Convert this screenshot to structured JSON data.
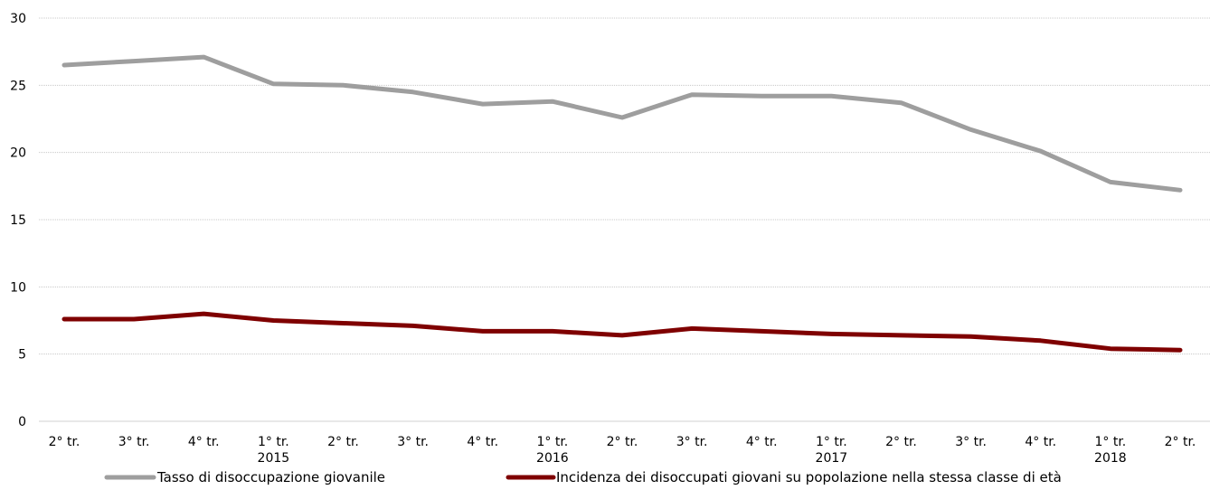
{
  "chart_data": {
    "type": "line",
    "title": "",
    "xlabel": "",
    "ylabel": "",
    "ylim": [
      0,
      30
    ],
    "yticks": [
      "0",
      "5",
      "10",
      "15",
      "20",
      "25",
      "30"
    ],
    "grid": "horizontal",
    "legend_position": "bottom",
    "categories": [
      {
        "label": "2° tr.",
        "year": ""
      },
      {
        "label": "3° tr.",
        "year": ""
      },
      {
        "label": "4° tr.",
        "year": ""
      },
      {
        "label": "1° tr.",
        "year": "2015"
      },
      {
        "label": "2° tr.",
        "year": ""
      },
      {
        "label": "3° tr.",
        "year": ""
      },
      {
        "label": "4° tr.",
        "year": ""
      },
      {
        "label": "1° tr.",
        "year": "2016"
      },
      {
        "label": "2° tr.",
        "year": ""
      },
      {
        "label": "3° tr.",
        "year": ""
      },
      {
        "label": "4° tr.",
        "year": ""
      },
      {
        "label": "1° tr.",
        "year": "2017"
      },
      {
        "label": "2° tr.",
        "year": ""
      },
      {
        "label": "3° tr.",
        "year": ""
      },
      {
        "label": "4° tr.",
        "year": ""
      },
      {
        "label": "1° tr.",
        "year": "2018"
      },
      {
        "label": "2° tr.",
        "year": ""
      }
    ],
    "series": [
      {
        "name": "Tasso di disoccupazione giovanile",
        "color": "#9e9e9e",
        "values": [
          26.5,
          26.8,
          27.1,
          25.1,
          25.0,
          24.5,
          23.6,
          23.8,
          22.6,
          24.3,
          24.2,
          24.2,
          23.7,
          21.7,
          20.1,
          17.8,
          17.2
        ]
      },
      {
        "name": "Incidenza dei disoccupati giovani su popolazione nella stessa classe di età",
        "color": "#7f0000",
        "values": [
          7.6,
          7.6,
          8.0,
          7.5,
          7.3,
          7.1,
          6.7,
          6.7,
          6.4,
          6.9,
          6.7,
          6.5,
          6.4,
          6.3,
          6.0,
          5.4,
          5.3
        ]
      }
    ]
  }
}
